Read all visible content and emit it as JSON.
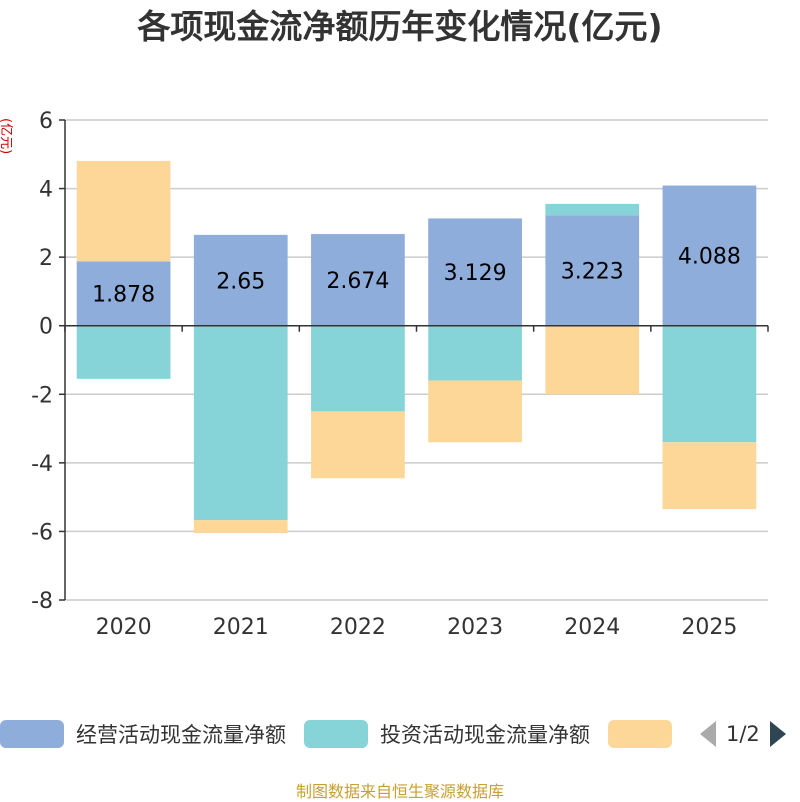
{
  "chart_data": {
    "type": "bar",
    "stacked": true,
    "title": "各项现金流净额历年变化情况(亿元)",
    "ylabel": "(亿元)",
    "ylim": [
      -8,
      6
    ],
    "yticks": [
      6,
      4,
      2,
      0,
      -2,
      -4,
      -6,
      -8
    ],
    "grid": true,
    "categories": [
      "2020",
      "2021",
      "2022",
      "2023",
      "2024",
      "2025"
    ],
    "series": [
      {
        "name": "经营活动现金流量净额",
        "color": "#8eaddb",
        "values": [
          1.878,
          2.65,
          2.674,
          3.129,
          3.223,
          4.088
        ],
        "labels": [
          "1.878",
          "2.65",
          "2.674",
          "3.129",
          "3.223",
          "4.088"
        ]
      },
      {
        "name": "投资活动现金流量净额",
        "color": "#86d4d7",
        "values": [
          -1.55,
          -5.67,
          -2.5,
          -1.6,
          0.33,
          -3.4
        ]
      },
      {
        "name": "",
        "color": "#fcd797",
        "values": [
          2.93,
          -0.38,
          -1.95,
          -1.8,
          -2.0,
          -1.95
        ]
      }
    ],
    "legend": {
      "position": "bottom",
      "page_text": "1/2"
    }
  },
  "footer": {
    "source": "制图数据来自恒生聚源数据库"
  }
}
